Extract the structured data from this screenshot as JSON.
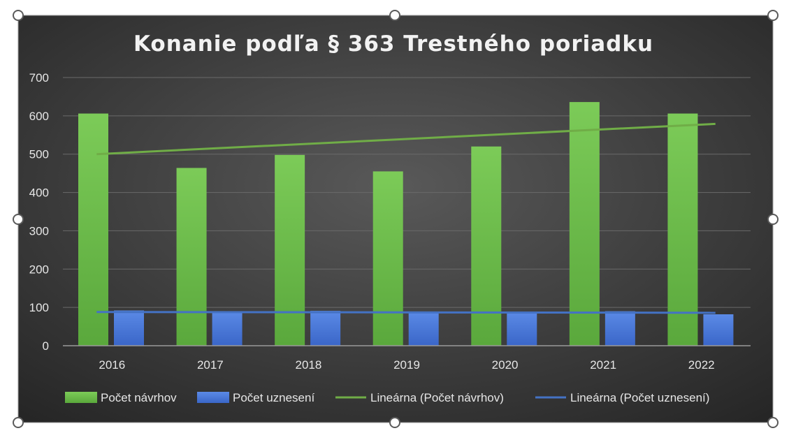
{
  "chart_data": {
    "type": "bar",
    "title": "Konanie podľa § 363 Trestného poriadku",
    "categories": [
      "2016",
      "2017",
      "2018",
      "2019",
      "2020",
      "2021",
      "2022"
    ],
    "ylim": [
      0,
      700
    ],
    "yticks": [
      0,
      100,
      200,
      300,
      400,
      500,
      600,
      700
    ],
    "grid": true,
    "legend_position": "bottom",
    "series": [
      {
        "name": "Počet návrhov",
        "values": [
          606,
          464,
          498,
          455,
          520,
          636,
          606
        ],
        "color": "#6fbf4f"
      },
      {
        "name": "Počet uznesení",
        "values": [
          92,
          90,
          91,
          89,
          88,
          90,
          82
        ],
        "color": "#4a78d8"
      }
    ],
    "trendlines": [
      {
        "name": "Lineárna (Počet návrhov)",
        "start": 500,
        "end": 579,
        "color": "#70ad47"
      },
      {
        "name": "Lineárna (Počet uznesení)",
        "start": 88,
        "end": 86,
        "color": "#4472c4"
      }
    ]
  }
}
